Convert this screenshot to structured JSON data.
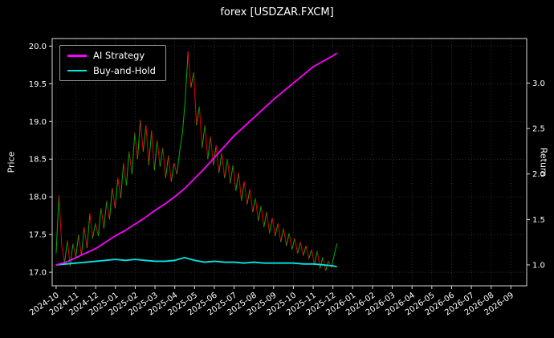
{
  "chart_data": {
    "type": "line",
    "title": "forex [USDZAR.FXCM]",
    "ylabel_left": "Price",
    "ylabel_right": "Return",
    "grid": true,
    "legend_position": "upper left",
    "background": "#000000",
    "xlim_months": [
      -0.2,
      23.8
    ],
    "price_ylim": [
      16.82,
      20.1
    ],
    "return_ylim": [
      0.77,
      3.49
    ],
    "x_tick_labels": [
      "2024-10",
      "2024-11",
      "2024-12",
      "2025-01",
      "2025-02",
      "2025-03",
      "2025-04",
      "2025-05",
      "2025-06",
      "2025-07",
      "2025-08",
      "2025-09",
      "2025-10",
      "2025-11",
      "2025-12",
      "2026-01",
      "2026-02",
      "2026-03",
      "2026-04",
      "2026-05",
      "2026-06",
      "2026-07",
      "2026-08",
      "2026-09"
    ],
    "y_ticks_left": [
      "17.0",
      "17.5",
      "18.0",
      "18.5",
      "19.0",
      "19.5",
      "20.0"
    ],
    "y_ticks_right": [
      "1.0",
      "1.5",
      "2.0",
      "2.5",
      "3.0"
    ],
    "series": [
      {
        "name": "Price",
        "axis": "left",
        "type": "updown-line",
        "color_up": "#00b300",
        "color_down": "#e60000",
        "x_start_month": 0,
        "x_end_month": 14.2,
        "values": [
          17.25,
          18.02,
          17.35,
          17.12,
          17.42,
          17.08,
          17.38,
          17.2,
          17.5,
          17.22,
          17.6,
          17.32,
          17.78,
          17.45,
          17.65,
          17.48,
          17.85,
          17.58,
          17.95,
          17.7,
          18.12,
          17.85,
          18.25,
          17.98,
          18.45,
          18.15,
          18.6,
          18.3,
          18.85,
          18.5,
          19.02,
          18.6,
          18.95,
          18.42,
          18.88,
          18.35,
          18.75,
          18.4,
          18.65,
          18.25,
          18.55,
          18.2,
          18.45,
          18.3,
          18.6,
          18.85,
          19.3,
          19.93,
          19.45,
          19.65,
          18.95,
          19.2,
          18.65,
          18.95,
          18.5,
          18.8,
          18.42,
          18.68,
          18.32,
          18.58,
          18.25,
          18.5,
          18.18,
          18.42,
          18.08,
          18.32,
          17.95,
          18.2,
          17.9,
          18.1,
          17.8,
          17.98,
          17.68,
          17.88,
          17.6,
          17.8,
          17.52,
          17.72,
          17.48,
          17.65,
          17.4,
          17.58,
          17.35,
          17.52,
          17.3,
          17.45,
          17.25,
          17.4,
          17.22,
          17.35,
          17.18,
          17.3,
          17.1,
          17.28,
          17.05,
          17.2,
          17.02,
          17.15,
          17.06,
          17.22,
          17.38
        ]
      },
      {
        "name": "AI Strategy",
        "axis": "right",
        "type": "line",
        "color": "#ff00ff",
        "x_months": [
          0,
          0.5,
          1,
          1.5,
          2,
          2.5,
          3,
          3.5,
          4,
          4.5,
          5,
          5.5,
          6,
          6.5,
          7,
          7.5,
          8,
          8.5,
          9,
          9.5,
          10,
          10.5,
          11,
          11.5,
          12,
          12.5,
          13,
          13.5,
          14,
          14.2
        ],
        "values": [
          1.0,
          1.03,
          1.08,
          1.13,
          1.18,
          1.25,
          1.32,
          1.38,
          1.45,
          1.52,
          1.6,
          1.67,
          1.75,
          1.84,
          1.95,
          2.06,
          2.18,
          2.3,
          2.42,
          2.52,
          2.62,
          2.72,
          2.82,
          2.91,
          3.0,
          3.09,
          3.18,
          3.24,
          3.3,
          3.33
        ]
      },
      {
        "name": "Buy-and-Hold",
        "axis": "right",
        "type": "line",
        "color": "#00e5e5",
        "x_months": [
          0,
          0.5,
          1,
          1.5,
          2,
          2.5,
          3,
          3.5,
          4,
          4.5,
          5,
          5.5,
          6,
          6.5,
          7,
          7.5,
          8,
          8.5,
          9,
          9.5,
          10,
          10.5,
          11,
          11.5,
          12,
          12.5,
          13,
          13.5,
          14,
          14.2
        ],
        "values": [
          1.0,
          1.01,
          1.02,
          1.03,
          1.04,
          1.05,
          1.06,
          1.05,
          1.06,
          1.05,
          1.04,
          1.04,
          1.05,
          1.08,
          1.05,
          1.03,
          1.04,
          1.03,
          1.03,
          1.02,
          1.03,
          1.02,
          1.02,
          1.02,
          1.02,
          1.01,
          1.01,
          1.0,
          0.99,
          0.98
        ]
      }
    ],
    "legend": [
      {
        "label": "AI Strategy",
        "color": "#ff00ff"
      },
      {
        "label": "Buy-and-Hold",
        "color": "#00e5e5"
      }
    ]
  },
  "colors": {
    "background": "#000000",
    "text": "#ffffff",
    "spine": "#d9d9d9",
    "grid": "#9a9a9a"
  }
}
